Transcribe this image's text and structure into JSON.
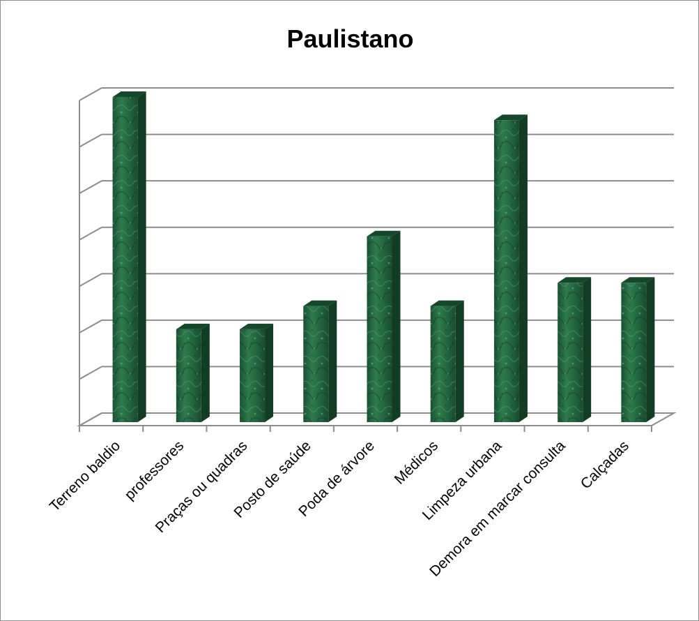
{
  "chart_data": {
    "type": "bar",
    "title": "Paulistano",
    "categories": [
      "Terreno baldio",
      "professores",
      "Praças ou quadras",
      "Posto de saúde",
      "Poda de árvore",
      "Médicos",
      "Limpeza urbana",
      "Demora em marcar consulta",
      "Calçadas"
    ],
    "values": [
      7,
      2,
      2,
      2.5,
      4,
      2.5,
      6.5,
      3,
      3
    ],
    "ylim": [
      0,
      7
    ],
    "y_ticks_shown": false,
    "grid": true,
    "three_d": true,
    "bar_color": "#1e5e3a",
    "bar_highlight": "#3f8a5d",
    "grid_color": "#8c8c8c"
  }
}
